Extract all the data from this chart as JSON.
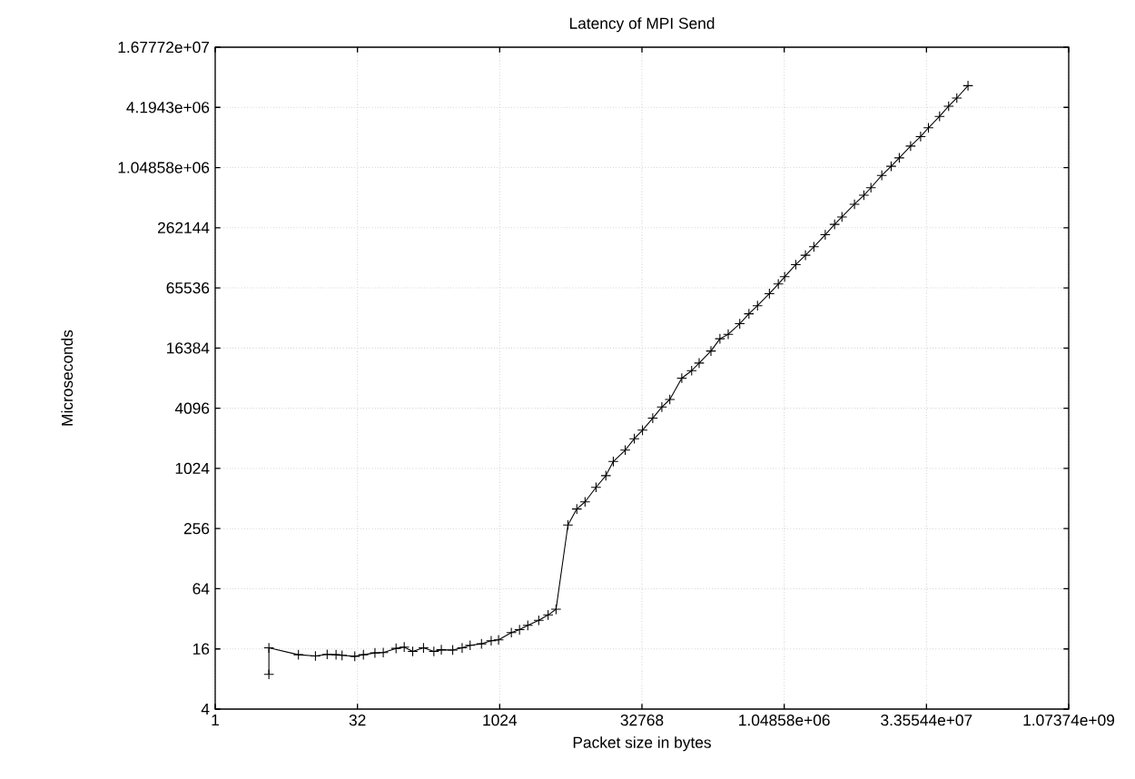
{
  "chart_data": {
    "type": "line",
    "title": "Latency of MPI Send",
    "xlabel": "Packet size in bytes",
    "ylabel": "Microseconds",
    "log": "xy",
    "grid": true,
    "marker": "cross",
    "line_style": "solid",
    "color": "#000000",
    "xlim": [
      1,
      1073741824
    ],
    "ylim": [
      4,
      16777216
    ],
    "xticks": [
      1,
      32,
      1024,
      32768,
      {
        "value": 1048576,
        "label": "1.04858e+06"
      },
      {
        "value": 33554432,
        "label": "3.35544e+07"
      },
      {
        "value": 1073741824,
        "label": "1.07374e+09"
      }
    ],
    "yticks": [
      4,
      16,
      64,
      256,
      1024,
      4096,
      16384,
      65536,
      262144,
      {
        "value": 1048576,
        "label": "1.04858e+06"
      },
      {
        "value": 4194304,
        "label": "4.1943e+06"
      },
      {
        "value": 16777216,
        "label": "1.67772e+07"
      }
    ],
    "x": [
      3.7,
      3.7,
      7.6,
      11.5,
      15.3,
      19,
      22,
      30,
      37,
      49,
      60,
      82,
      100,
      123,
      160,
      206,
      247,
      326,
      410,
      498,
      657,
      832,
      996,
      1360,
      1660,
      2030,
      2650,
      3330,
      4040,
      5400,
      6700,
      8190,
      10700,
      13600,
      16300,
      21800,
      27200,
      33200,
      42600,
      53200,
      64600,
      86500,
      110000,
      132000,
      176000,
      219000,
      268000,
      355000,
      444000,
      547000,
      731000,
      908000,
      1060000,
      1390000,
      1760000,
      2160000,
      2850000,
      3580000,
      4280000,
      5810000,
      7300000,
      8670000,
      11300000,
      14200000,
      17300000,
      22800000,
      29100000,
      35200000,
      46200000,
      57600000,
      70300000,
      92300000
    ],
    "values": [
      8.9,
      16.4,
      14.0,
      13.6,
      14.1,
      14.0,
      13.8,
      13.5,
      14.0,
      14.6,
      14.7,
      16.2,
      16.7,
      15.1,
      16.4,
      15.1,
      15.7,
      15.6,
      16.4,
      17.4,
      18.0,
      19.3,
      19.7,
      23.3,
      24.9,
      27.5,
      30.9,
      35.0,
      39.9,
      278,
      402,
      474,
      662,
      867,
      1200,
      1560,
      2030,
      2470,
      3260,
      4210,
      5010,
      8190,
      9740,
      11600,
      15300,
      20300,
      22500,
      28700,
      36100,
      43500,
      57400,
      71700,
      84700,
      112000,
      139000,
      169000,
      223000,
      283000,
      336000,
      450000,
      554000,
      659000,
      875000,
      1080000,
      1310000,
      1720000,
      2140000,
      2620000,
      3410000,
      4310000,
      5200000,
      6910000
    ]
  }
}
